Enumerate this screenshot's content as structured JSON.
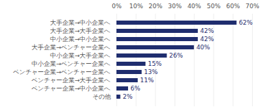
{
  "chart_data": {
    "type": "bar",
    "orientation": "horizontal",
    "categories": [
      "大手企業→中小企業へ",
      "大手企業→大手企業へ",
      "中小企業→中小企業へ",
      "大手企業→ベンチャー企業へ",
      "中小企業→大手企業へ",
      "中小企業→ベンチャー企業へ",
      "ベンチャー企業→ベンチャー企業へ",
      "ベンチャー企業→大手企業へ",
      "ベンチャー企業→中小企業へ",
      "その他"
    ],
    "values": [
      62,
      42,
      42,
      40,
      26,
      15,
      13,
      11,
      6,
      2
    ],
    "value_labels": [
      "62%",
      "42%",
      "42%",
      "40%",
      "26%",
      "15%",
      "13%",
      "11%",
      "6%",
      "2%"
    ],
    "data_labels": true,
    "color": "#1f2d6e",
    "xlim": [
      0,
      70
    ],
    "xticks": [
      {
        "value": 0,
        "label": "0%"
      },
      {
        "value": 10,
        "label": "10%"
      },
      {
        "value": 20,
        "label": "20%"
      },
      {
        "value": 30,
        "label": "30%"
      },
      {
        "value": 40,
        "label": "40%"
      },
      {
        "value": 50,
        "label": "50%"
      },
      {
        "value": 60,
        "label": "60%"
      },
      {
        "value": 70,
        "label": "70%"
      }
    ],
    "grid": true
  }
}
